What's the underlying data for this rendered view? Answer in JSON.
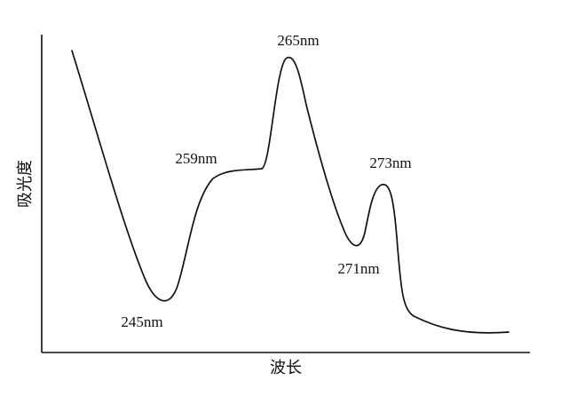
{
  "chart_data": {
    "type": "line",
    "title": "",
    "xlabel": "波长",
    "ylabel": "吸光度",
    "grid": false,
    "legend": "none",
    "ticks": false,
    "annotations": [
      "245nm",
      "259nm",
      "265nm",
      "271nm",
      "273nm"
    ]
  }
}
